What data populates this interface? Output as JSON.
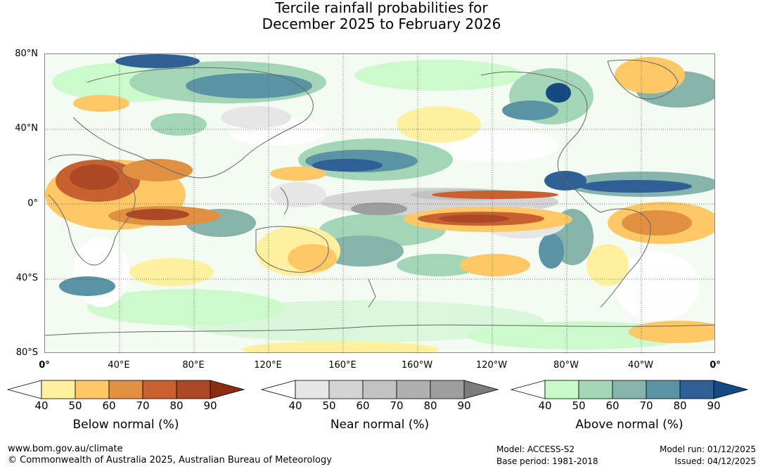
{
  "title": {
    "line1": "Tercile rainfall probabilities for",
    "line2": "December 2025 to February 2026"
  },
  "map": {
    "lat_labels": [
      "80°N",
      "40°N",
      "0°",
      "40°S",
      "80°S"
    ],
    "lon_labels": [
      "0°",
      "40°E",
      "80°E",
      "120°E",
      "160°E",
      "160°W",
      "120°W",
      "80°W",
      "40°W",
      "0°"
    ]
  },
  "colorbars": [
    {
      "id": "below",
      "title": "Below normal (%)",
      "ticks": [
        "40",
        "50",
        "60",
        "70",
        "80",
        "90"
      ],
      "colors": [
        "#ffffff",
        "#fff0a0",
        "#ffc866",
        "#e09040",
        "#c86030",
        "#ab4826",
        "#8a2c14"
      ]
    },
    {
      "id": "near",
      "title": "Near normal (%)",
      "ticks": [
        "40",
        "50",
        "60",
        "70",
        "80",
        "90"
      ],
      "colors": [
        "#ffffff",
        "#e6e6e6",
        "#d4d4d4",
        "#c2c2c2",
        "#b0b0b0",
        "#9e9e9e",
        "#7c7c7c"
      ]
    },
    {
      "id": "above",
      "title": "Above normal (%)",
      "ticks": [
        "40",
        "50",
        "60",
        "70",
        "80",
        "90"
      ],
      "colors": [
        "#ffffff",
        "#c8fac8",
        "#a2d6b6",
        "#86b4aa",
        "#5a94a4",
        "#2e6096",
        "#134a80"
      ]
    }
  ],
  "footer": {
    "website": "www.bom.gov.au/climate",
    "copyright": "© Commonwealth of Australia 2025, Australian Bureau of Meteorology",
    "model": "Model: ACCESS-S2",
    "base_period": "Base period: 1981-2018",
    "model_run": "Model run: 01/12/2025",
    "issued": "Issued: 04/12/2025"
  }
}
